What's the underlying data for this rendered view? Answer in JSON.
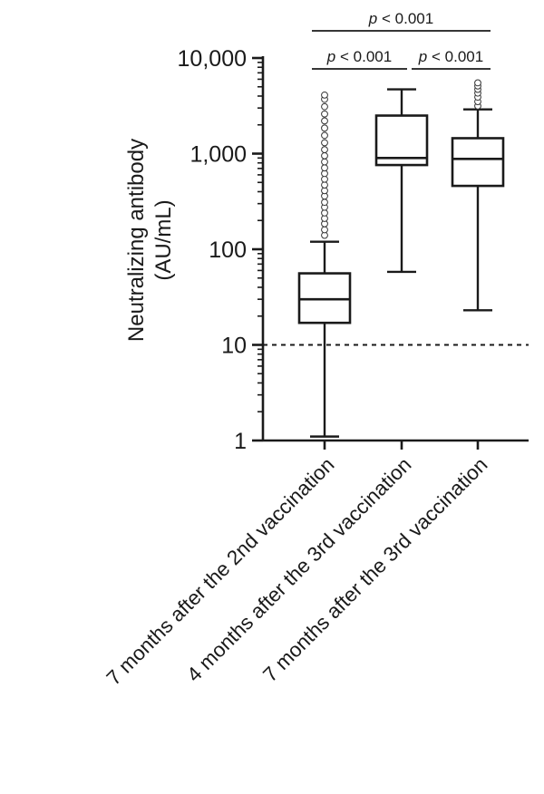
{
  "chart_data": {
    "type": "box",
    "ylabel": [
      "Neutralizing antibody",
      "(AU/mL)"
    ],
    "yscale": "log",
    "ylim": [
      1,
      10000
    ],
    "yticks": [
      1,
      10,
      100,
      1000,
      10000
    ],
    "ytick_labels": [
      "1",
      "10",
      "100",
      "1,000",
      "10,000"
    ],
    "categories": [
      "7 months after the 2nd vaccination",
      "4 months after the 3rd vaccination",
      "7 months after the 3rd vaccination"
    ],
    "boxes": [
      {
        "whisker_low": 1.1,
        "q1": 17,
        "median": 30,
        "q3": 56,
        "whisker_high": 120,
        "outliers": [
          140,
          160,
          185,
          210,
          240,
          275,
          310,
          360,
          410,
          470,
          540,
          620,
          710,
          820,
          950,
          1100,
          1300,
          1550,
          1850,
          2200,
          2600,
          3100,
          3700,
          4100
        ]
      },
      {
        "whisker_low": 58,
        "q1": 760,
        "median": 900,
        "q3": 2500,
        "whisker_high": 4700,
        "outliers": []
      },
      {
        "whisker_low": 23,
        "q1": 460,
        "median": 880,
        "q3": 1450,
        "whisker_high": 2900,
        "outliers": [
          3150,
          3500,
          3900,
          4300,
          4700,
          5100,
          5500
        ]
      }
    ],
    "reference_line": {
      "y": 10,
      "style": "dashed"
    },
    "comparisons": [
      {
        "from": 0,
        "to": 1,
        "label": "p < 0.001",
        "level": 1
      },
      {
        "from": 1,
        "to": 2,
        "label": "p < 0.001",
        "level": 1
      },
      {
        "from": 0,
        "to": 2,
        "label": "p < 0.001",
        "level": 2
      }
    ]
  }
}
